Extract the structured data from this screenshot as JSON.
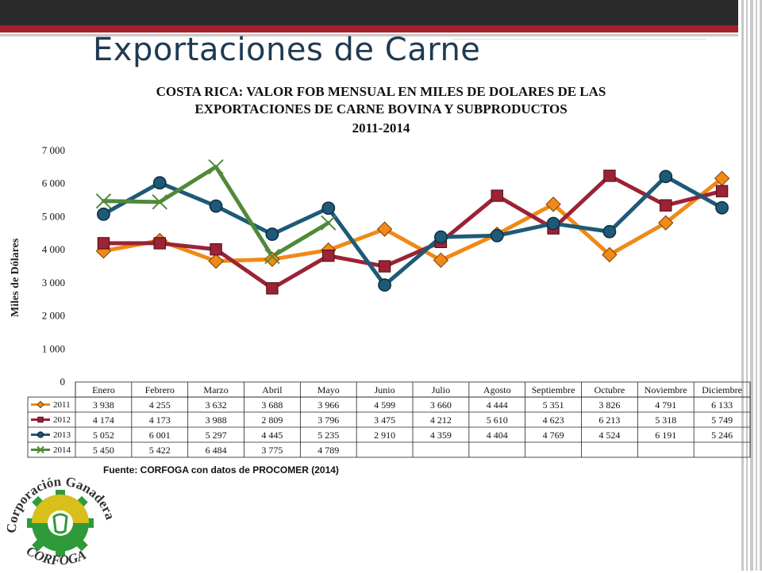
{
  "slide_title": "Exportaciones de Carne",
  "chart_data": {
    "type": "line",
    "title_line1": "COSTA RICA: VALOR FOB MENSUAL EN MILES DE DOLARES DE LAS",
    "title_line2": "EXPORTACIONES DE CARNE BOVINA Y SUBPRODUCTOS",
    "title_line3": "2011-2014",
    "ylabel": "Miles de Dólares",
    "ylim": [
      0,
      7000
    ],
    "yticks": [
      0,
      1000,
      2000,
      3000,
      4000,
      5000,
      6000,
      7000
    ],
    "ytick_labels": [
      "0",
      "1 000",
      "2 000",
      "3 000",
      "4 000",
      "5 000",
      "6 000",
      "7 000"
    ],
    "categories": [
      "Enero",
      "Febrero",
      "Marzo",
      "Abril",
      "Mayo",
      "Junio",
      "Julio",
      "Agosto",
      "Septiembre",
      "Octubre",
      "Noviembre",
      "Diciembre"
    ],
    "series": [
      {
        "name": "2011",
        "color": "#ef8a17",
        "marker": "diamond",
        "values": [
          3938,
          4255,
          3632,
          3688,
          3966,
          4599,
          3660,
          4444,
          5351,
          3826,
          4791,
          6133
        ],
        "labels": [
          "3 938",
          "4 255",
          "3 632",
          "3 688",
          "3 966",
          "4 599",
          "3 660",
          "4 444",
          "5 351",
          "3 826",
          "4 791",
          "6 133"
        ]
      },
      {
        "name": "2012",
        "color": "#9b2335",
        "marker": "square",
        "values": [
          4174,
          4173,
          3988,
          2809,
          3796,
          3475,
          4212,
          5610,
          4623,
          6213,
          5318,
          5749
        ],
        "labels": [
          "4 174",
          "4 173",
          "3 988",
          "2 809",
          "3 796",
          "3 475",
          "4 212",
          "5 610",
          "4 623",
          "6 213",
          "5 318",
          "5 749"
        ]
      },
      {
        "name": "2013",
        "color": "#1e5a78",
        "marker": "circle",
        "values": [
          5052,
          6001,
          5297,
          4445,
          5235,
          2910,
          4359,
          4404,
          4769,
          4524,
          6191,
          5246
        ],
        "labels": [
          "5 052",
          "6 001",
          "5 297",
          "4 445",
          "5 235",
          "2 910",
          "4 359",
          "4 404",
          "4 769",
          "4 524",
          "6 191",
          "5 246"
        ]
      },
      {
        "name": "2014",
        "color": "#4f8a3a",
        "marker": "x",
        "values": [
          5450,
          5422,
          6484,
          3775,
          4789,
          null,
          null,
          null,
          null,
          null,
          null,
          null
        ],
        "labels": [
          "5 450",
          "5 422",
          "6 484",
          "3 775",
          "4 789",
          "",
          "",
          "",
          "",
          "",
          "",
          ""
        ]
      }
    ]
  },
  "source_note": "Fuente: CORFOGA con datos de PROCOMER (2014)",
  "logo": {
    "top_text": "Corporación Ganadera",
    "bottom_text": "CORFOGA"
  }
}
